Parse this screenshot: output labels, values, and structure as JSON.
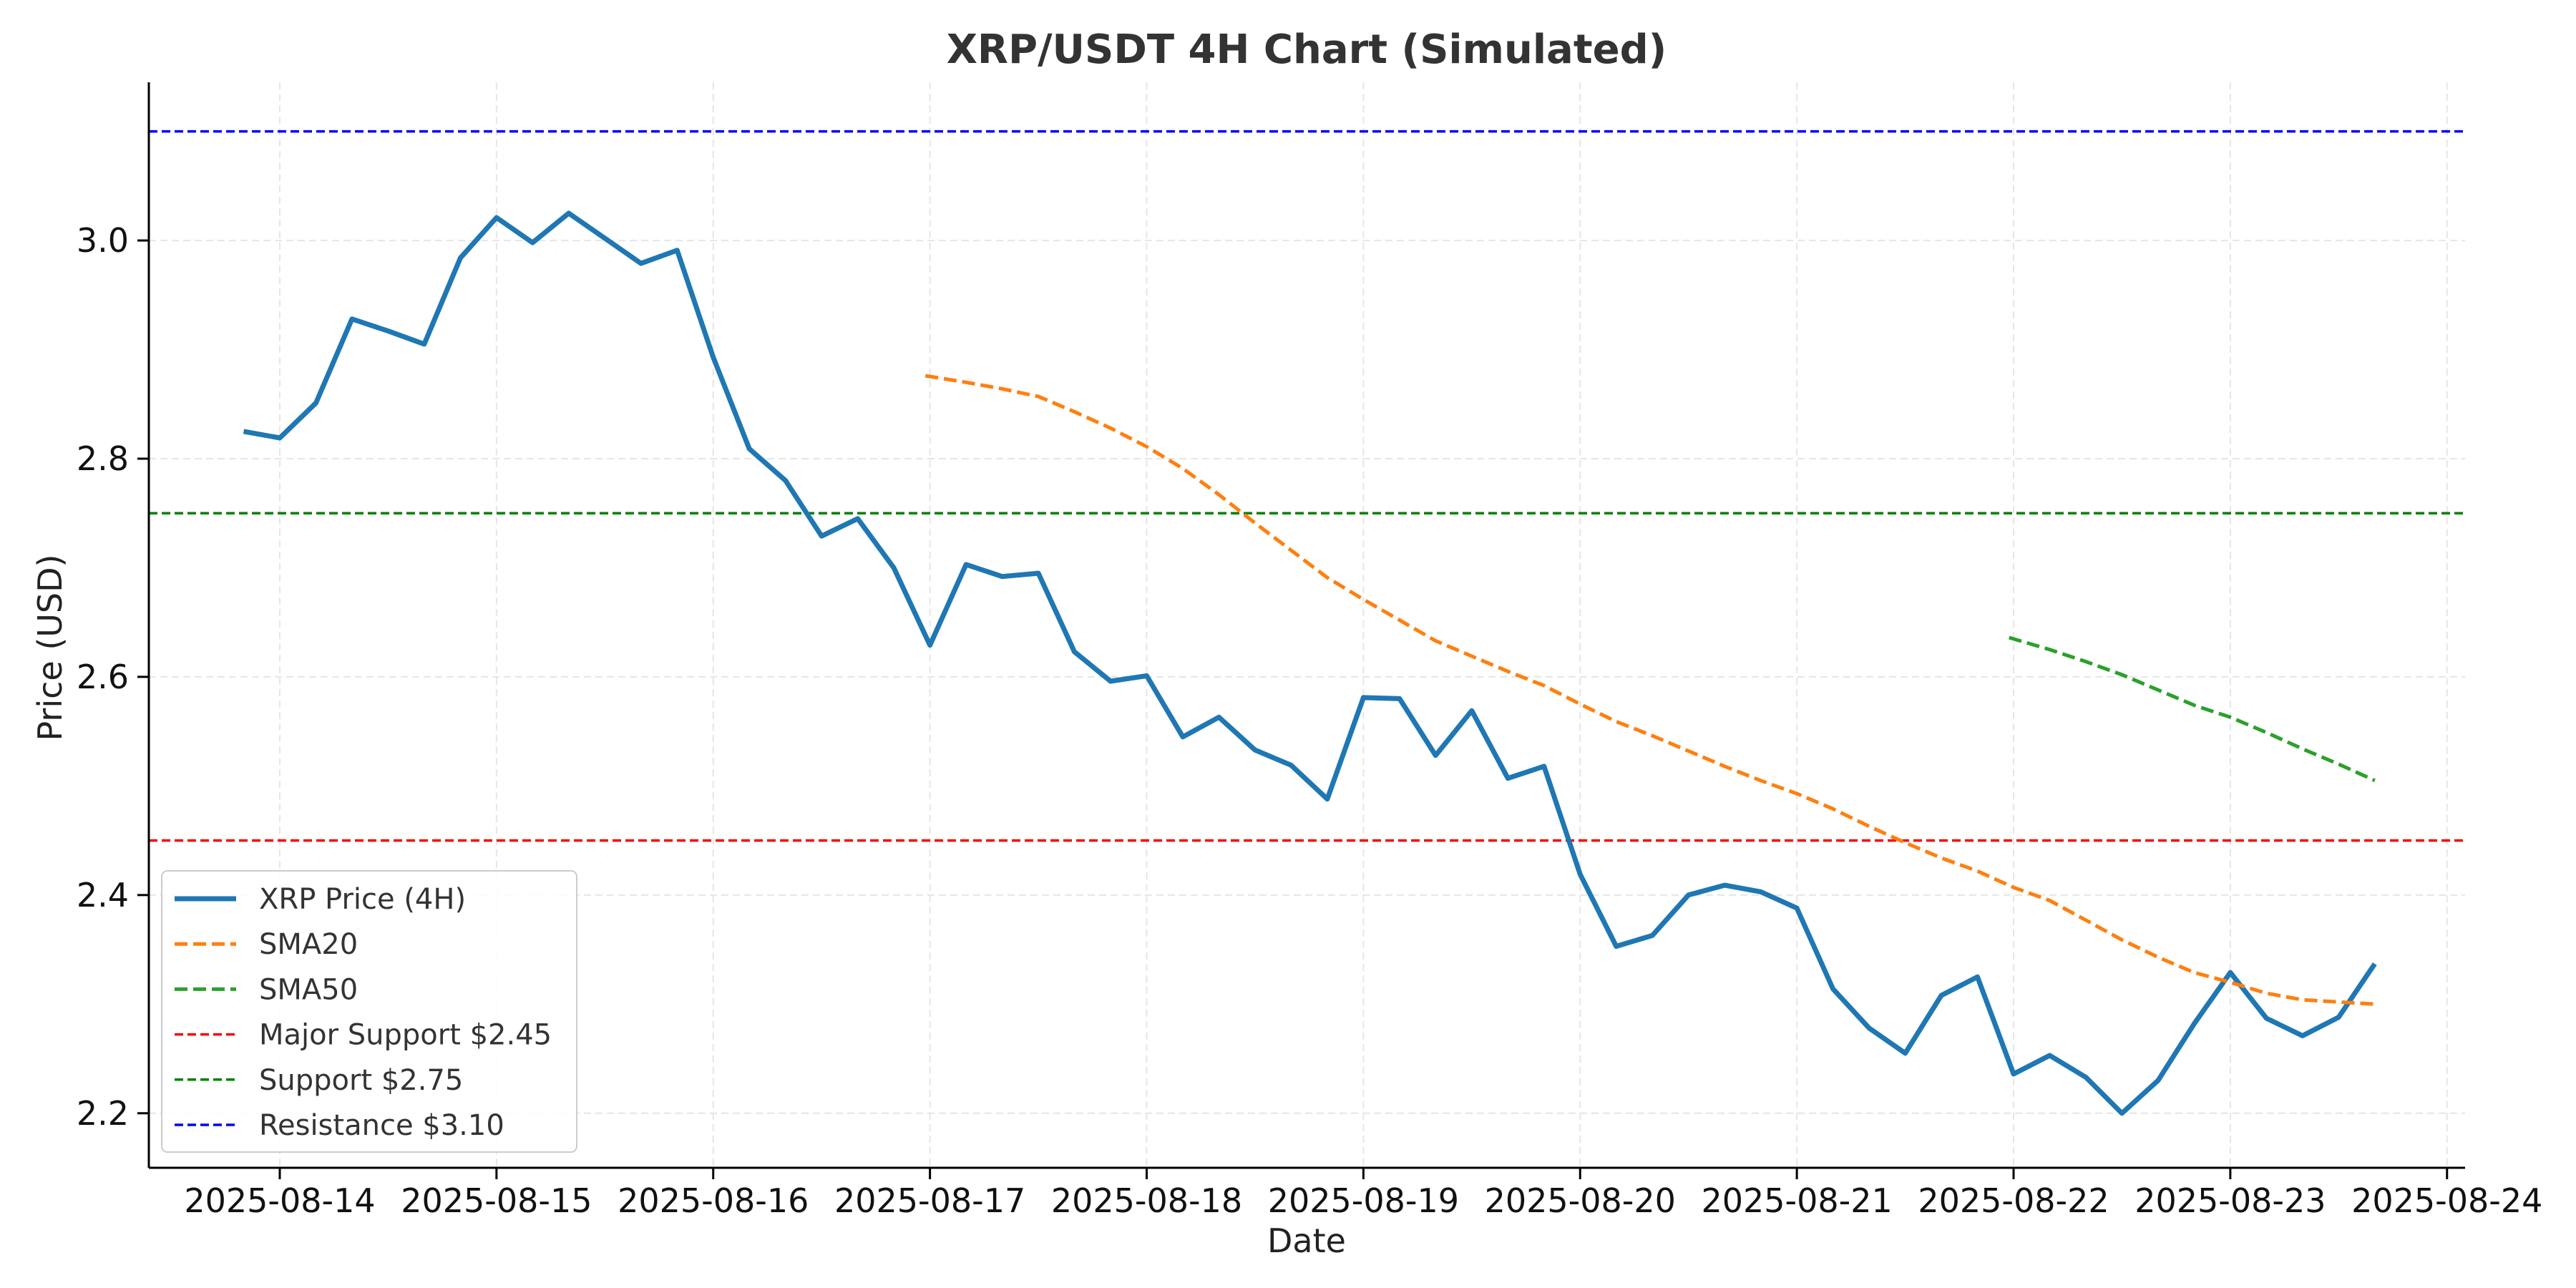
{
  "chart_data": {
    "type": "line",
    "title": "XRP/USDT 4H Chart (Simulated)",
    "xlabel": "Date",
    "ylabel": "Price (USD)",
    "x_tick_labels": [
      "2025-08-14",
      "2025-08-15",
      "2025-08-16",
      "2025-08-17",
      "2025-08-18",
      "2025-08-19",
      "2025-08-20",
      "2025-08-21",
      "2025-08-22",
      "2025-08-23",
      "2025-08-24"
    ],
    "y_ticks": [
      2.2,
      2.4,
      2.6,
      2.8,
      3.0
    ],
    "y_tick_labels": [
      "2.2",
      "2.4",
      "2.6",
      "2.8",
      "3.0"
    ],
    "xlim": [
      "2025-08-13T09:30",
      "2025-08-24T02:00"
    ],
    "ylim": [
      2.15,
      3.145
    ],
    "grid": true,
    "legend_position": "lower-left",
    "series": [
      {
        "name": "XRP Price (4H)",
        "color": "#1f77b4",
        "style": "solid",
        "points": [
          [
            "2025-08-13T20:00",
            2.825
          ],
          [
            "2025-08-14T00:00",
            2.819
          ],
          [
            "2025-08-14T04:00",
            2.851
          ],
          [
            "2025-08-14T08:00",
            2.928
          ],
          [
            "2025-08-14T12:00",
            2.917
          ],
          [
            "2025-08-14T16:00",
            2.905
          ],
          [
            "2025-08-14T20:00",
            2.984
          ],
          [
            "2025-08-15T00:00",
            3.021
          ],
          [
            "2025-08-15T04:00",
            2.998
          ],
          [
            "2025-08-15T08:00",
            3.025
          ],
          [
            "2025-08-15T12:00",
            3.002
          ],
          [
            "2025-08-15T16:00",
            2.979
          ],
          [
            "2025-08-15T20:00",
            2.991
          ],
          [
            "2025-08-16T00:00",
            2.893
          ],
          [
            "2025-08-16T04:00",
            2.809
          ],
          [
            "2025-08-16T08:00",
            2.78
          ],
          [
            "2025-08-16T12:00",
            2.729
          ],
          [
            "2025-08-16T16:00",
            2.745
          ],
          [
            "2025-08-16T20:00",
            2.7
          ],
          [
            "2025-08-17T00:00",
            2.629
          ],
          [
            "2025-08-17T04:00",
            2.703
          ],
          [
            "2025-08-17T08:00",
            2.692
          ],
          [
            "2025-08-17T12:00",
            2.695
          ],
          [
            "2025-08-17T16:00",
            2.623
          ],
          [
            "2025-08-17T20:00",
            2.596
          ],
          [
            "2025-08-18T00:00",
            2.601
          ],
          [
            "2025-08-18T04:00",
            2.545
          ],
          [
            "2025-08-18T08:00",
            2.563
          ],
          [
            "2025-08-18T12:00",
            2.533
          ],
          [
            "2025-08-18T16:00",
            2.519
          ],
          [
            "2025-08-18T20:00",
            2.488
          ],
          [
            "2025-08-19T00:00",
            2.581
          ],
          [
            "2025-08-19T04:00",
            2.58
          ],
          [
            "2025-08-19T08:00",
            2.528
          ],
          [
            "2025-08-19T12:00",
            2.569
          ],
          [
            "2025-08-19T16:00",
            2.507
          ],
          [
            "2025-08-19T20:00",
            2.518
          ],
          [
            "2025-08-20T00:00",
            2.419
          ],
          [
            "2025-08-20T04:00",
            2.353
          ],
          [
            "2025-08-20T08:00",
            2.363
          ],
          [
            "2025-08-20T12:00",
            2.4
          ],
          [
            "2025-08-20T16:00",
            2.409
          ],
          [
            "2025-08-20T20:00",
            2.403
          ],
          [
            "2025-08-21T00:00",
            2.388
          ],
          [
            "2025-08-21T04:00",
            2.314
          ],
          [
            "2025-08-21T08:00",
            2.278
          ],
          [
            "2025-08-21T12:00",
            2.255
          ],
          [
            "2025-08-21T16:00",
            2.308
          ],
          [
            "2025-08-21T20:00",
            2.325
          ],
          [
            "2025-08-22T00:00",
            2.236
          ],
          [
            "2025-08-22T04:00",
            2.253
          ],
          [
            "2025-08-22T08:00",
            2.233
          ],
          [
            "2025-08-22T12:00",
            2.2
          ],
          [
            "2025-08-22T16:00",
            2.23
          ],
          [
            "2025-08-22T20:00",
            2.282
          ],
          [
            "2025-08-23T00:00",
            2.329
          ],
          [
            "2025-08-23T04:00",
            2.287
          ],
          [
            "2025-08-23T08:00",
            2.271
          ],
          [
            "2025-08-23T12:00",
            2.288
          ],
          [
            "2025-08-23T16:00",
            2.337
          ]
        ]
      },
      {
        "name": "SMA20",
        "color": "#ff7f0e",
        "style": "dashed",
        "points": [
          [
            "2025-08-16T23:30",
            2.876
          ],
          [
            "2025-08-17T04:00",
            2.87
          ],
          [
            "2025-08-17T08:00",
            2.864
          ],
          [
            "2025-08-17T12:00",
            2.857
          ],
          [
            "2025-08-17T16:00",
            2.843
          ],
          [
            "2025-08-17T20:00",
            2.828
          ],
          [
            "2025-08-18T00:00",
            2.811
          ],
          [
            "2025-08-18T04:00",
            2.791
          ],
          [
            "2025-08-18T08:00",
            2.767
          ],
          [
            "2025-08-18T12:00",
            2.741
          ],
          [
            "2025-08-18T16:00",
            2.716
          ],
          [
            "2025-08-18T20:00",
            2.691
          ],
          [
            "2025-08-19T00:00",
            2.671
          ],
          [
            "2025-08-19T04:00",
            2.652
          ],
          [
            "2025-08-19T08:00",
            2.633
          ],
          [
            "2025-08-19T12:00",
            2.619
          ],
          [
            "2025-08-19T16:00",
            2.605
          ],
          [
            "2025-08-19T20:00",
            2.592
          ],
          [
            "2025-08-20T00:00",
            2.575
          ],
          [
            "2025-08-20T04:00",
            2.559
          ],
          [
            "2025-08-20T08:00",
            2.546
          ],
          [
            "2025-08-20T12:00",
            2.532
          ],
          [
            "2025-08-20T16:00",
            2.518
          ],
          [
            "2025-08-20T20:00",
            2.505
          ],
          [
            "2025-08-21T00:00",
            2.493
          ],
          [
            "2025-08-21T04:00",
            2.479
          ],
          [
            "2025-08-21T08:00",
            2.463
          ],
          [
            "2025-08-21T12:00",
            2.448
          ],
          [
            "2025-08-21T16:00",
            2.434
          ],
          [
            "2025-08-21T20:00",
            2.422
          ],
          [
            "2025-08-22T00:00",
            2.407
          ],
          [
            "2025-08-22T04:00",
            2.395
          ],
          [
            "2025-08-22T08:00",
            2.377
          ],
          [
            "2025-08-22T12:00",
            2.359
          ],
          [
            "2025-08-22T16:00",
            2.343
          ],
          [
            "2025-08-22T20:00",
            2.329
          ],
          [
            "2025-08-23T00:00",
            2.32
          ],
          [
            "2025-08-23T04:00",
            2.31
          ],
          [
            "2025-08-23T08:00",
            2.304
          ],
          [
            "2025-08-23T12:00",
            2.302
          ],
          [
            "2025-08-23T16:00",
            2.3
          ]
        ]
      },
      {
        "name": "SMA50",
        "color": "#2ca02c",
        "style": "dashed",
        "points": [
          [
            "2025-08-21T23:30",
            2.636
          ],
          [
            "2025-08-22T04:00",
            2.625
          ],
          [
            "2025-08-22T08:00",
            2.614
          ],
          [
            "2025-08-22T12:00",
            2.602
          ],
          [
            "2025-08-22T16:00",
            2.588
          ],
          [
            "2025-08-22T20:00",
            2.574
          ],
          [
            "2025-08-23T00:00",
            2.563
          ],
          [
            "2025-08-23T04:00",
            2.549
          ],
          [
            "2025-08-23T08:00",
            2.534
          ],
          [
            "2025-08-23T12:00",
            2.52
          ],
          [
            "2025-08-23T16:00",
            2.505
          ]
        ]
      }
    ],
    "reference_lines": [
      {
        "name": "Major Support $2.45",
        "y": 2.45,
        "color": "#ff0000"
      },
      {
        "name": "Support $2.75",
        "y": 2.75,
        "color": "#008000"
      },
      {
        "name": "Resistance $3.10",
        "y": 3.1,
        "color": "#0000ff"
      }
    ]
  }
}
